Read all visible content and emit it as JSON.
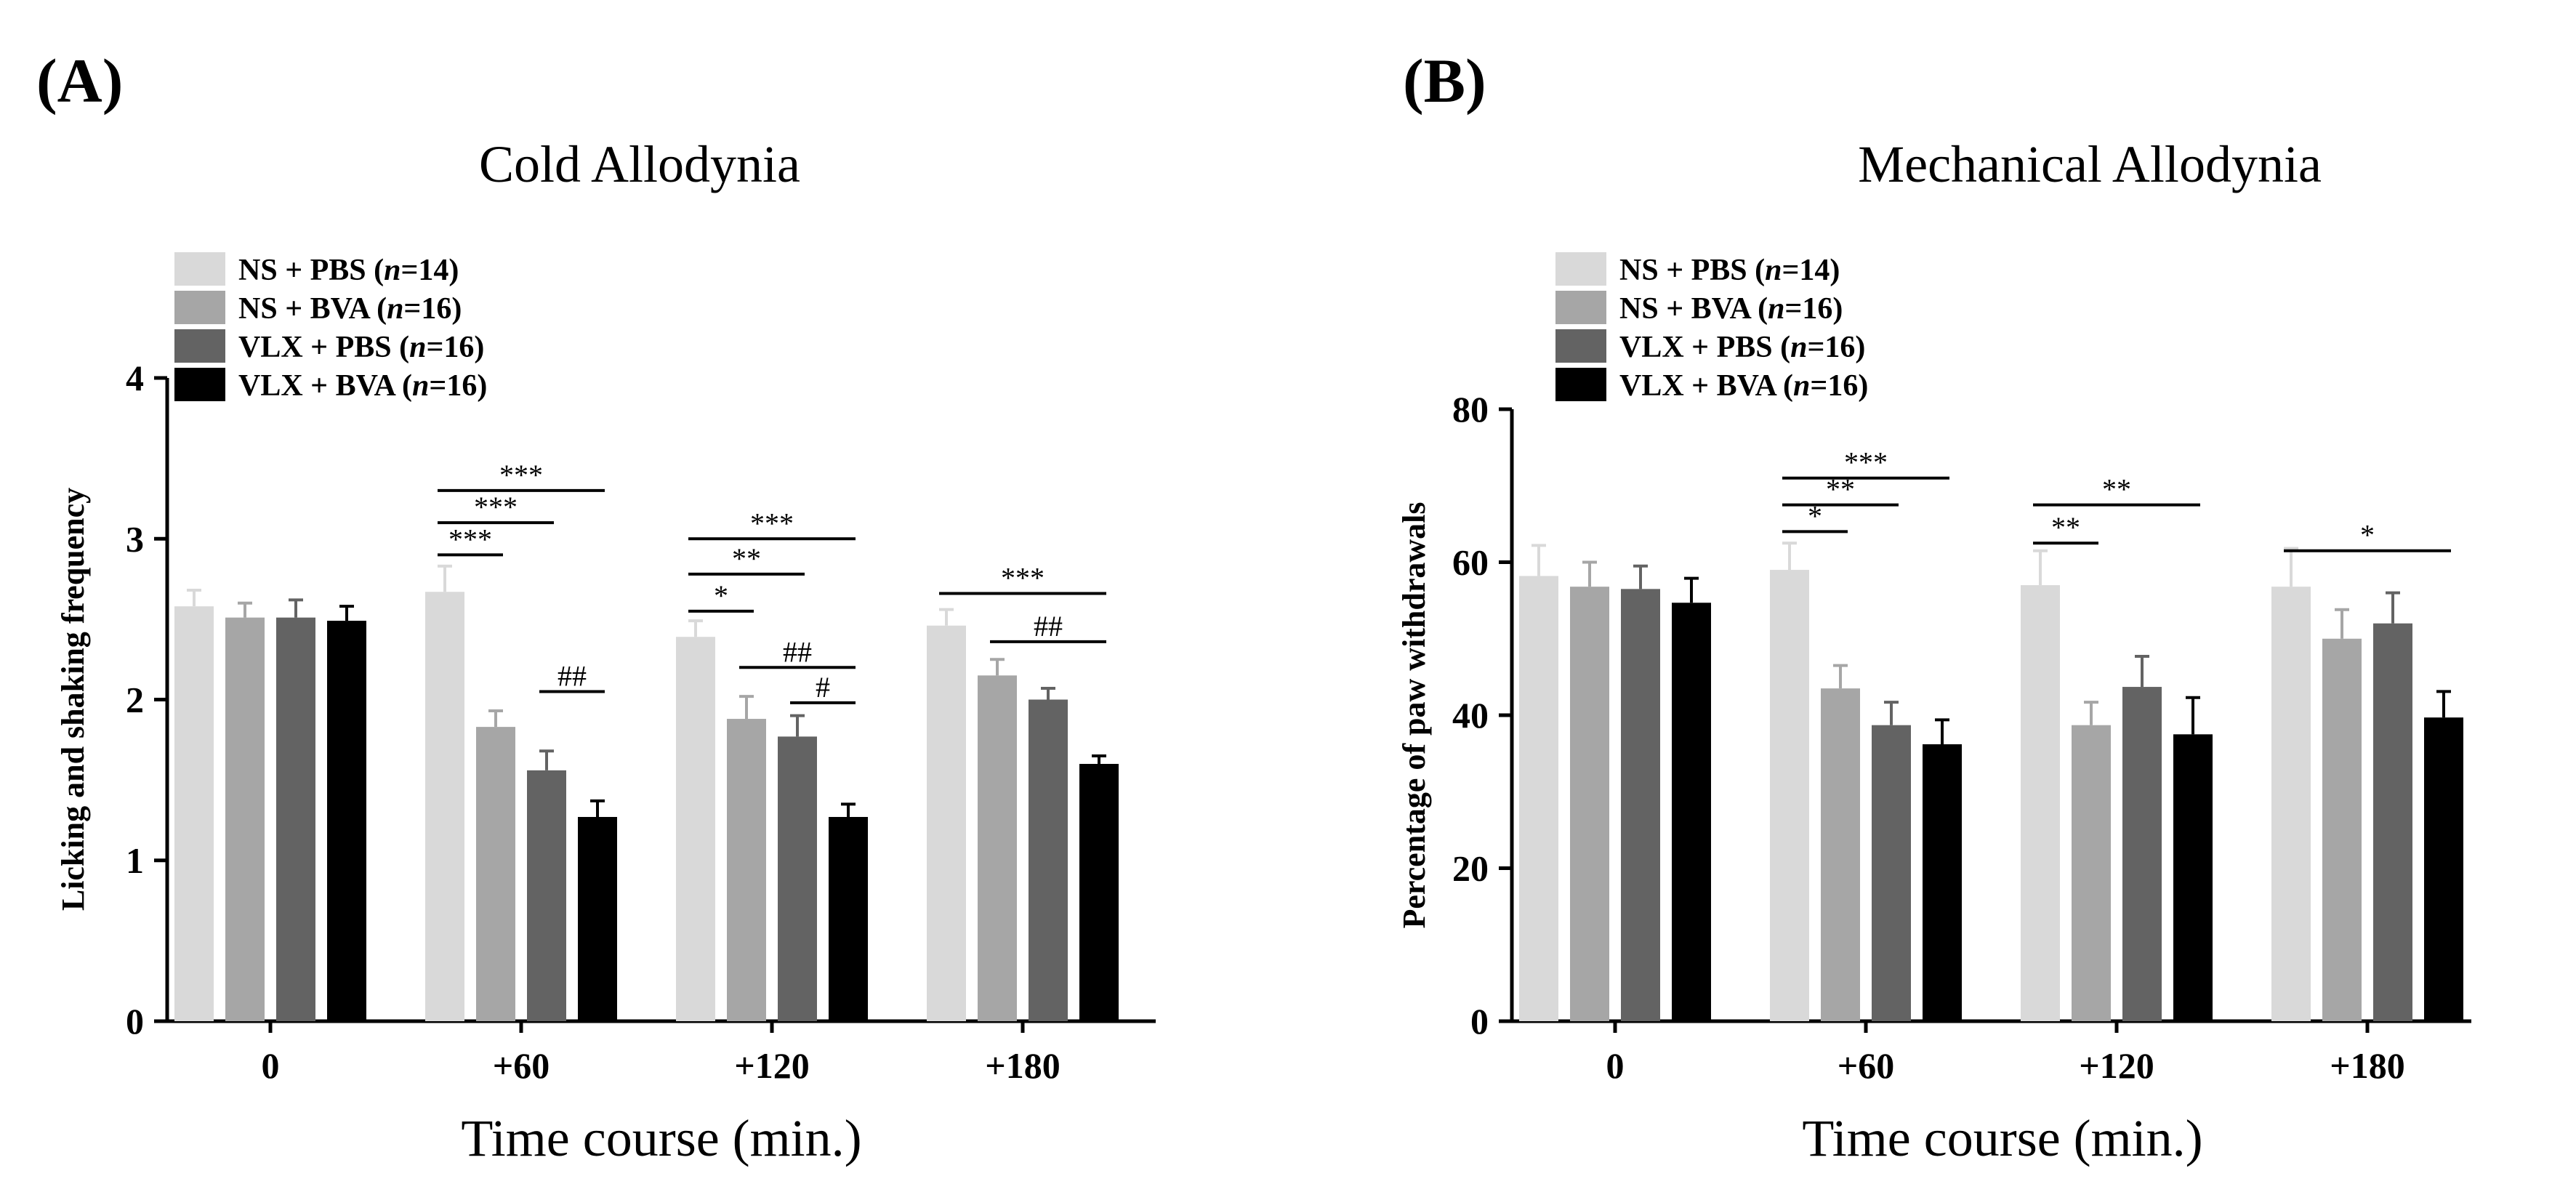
{
  "chart_data": [
    {
      "panel_label": "(A)",
      "type": "bar",
      "title": "Cold Allodynia",
      "xlabel": "Time course (min.)",
      "ylabel": "Licking and shaking frequency",
      "ylim": [
        0,
        4
      ],
      "yticks": [
        0,
        1,
        2,
        3,
        4
      ],
      "categories": [
        "0",
        "+60",
        "+120",
        "+180"
      ],
      "legend": {
        "placement": "top-left"
      },
      "series": [
        {
          "name": "NS + PBS (",
          "n_italic": "n",
          "n_rest": "=14)",
          "color": "#d9d9d9",
          "values": [
            2.58,
            2.67,
            2.39,
            2.46
          ],
          "errors": [
            0.1,
            0.16,
            0.1,
            0.1
          ]
        },
        {
          "name": "NS + BVA (",
          "n_italic": "n",
          "n_rest": "=16)",
          "color": "#a6a6a6",
          "values": [
            2.51,
            1.83,
            1.88,
            2.15
          ],
          "errors": [
            0.09,
            0.1,
            0.14,
            0.1
          ]
        },
        {
          "name": "VLX + PBS (",
          "n_italic": "n",
          "n_rest": "=16)",
          "color": "#636363",
          "values": [
            2.51,
            1.56,
            1.77,
            2.0
          ],
          "errors": [
            0.11,
            0.12,
            0.13,
            0.07
          ]
        },
        {
          "name": "VLX + BVA (",
          "n_italic": "n",
          "n_rest": "=16)",
          "color": "#000000",
          "values": [
            2.49,
            1.27,
            1.27,
            1.6
          ],
          "errors": [
            0.09,
            0.1,
            0.08,
            0.05
          ]
        }
      ],
      "annotations": [
        {
          "cat": 1,
          "from": 0,
          "to": 1,
          "y": 2.9,
          "label": "***"
        },
        {
          "cat": 1,
          "from": 0,
          "to": 2,
          "y": 3.1,
          "label": "***"
        },
        {
          "cat": 1,
          "from": 0,
          "to": 3,
          "y": 3.3,
          "label": "***"
        },
        {
          "cat": 1,
          "from": 2,
          "to": 3,
          "y": 2.05,
          "label": "##"
        },
        {
          "cat": 2,
          "from": 0,
          "to": 1,
          "y": 2.55,
          "label": "*"
        },
        {
          "cat": 2,
          "from": 0,
          "to": 2,
          "y": 2.78,
          "label": "**"
        },
        {
          "cat": 2,
          "from": 0,
          "to": 3,
          "y": 3.0,
          "label": "***"
        },
        {
          "cat": 2,
          "from": 1,
          "to": 3,
          "y": 2.2,
          "label": "##"
        },
        {
          "cat": 2,
          "from": 2,
          "to": 3,
          "y": 1.98,
          "label": "#"
        },
        {
          "cat": 3,
          "from": 0,
          "to": 3,
          "y": 2.66,
          "label": "***"
        },
        {
          "cat": 3,
          "from": 1,
          "to": 3,
          "y": 2.36,
          "label": "##"
        }
      ]
    },
    {
      "panel_label": "(B)",
      "type": "bar",
      "title": "Mechanical Allodynia",
      "xlabel": "Time course (min.)",
      "ylabel": "Percentage of paw withdrawals",
      "ylim": [
        0,
        80
      ],
      "yticks": [
        0,
        20,
        40,
        60,
        80
      ],
      "categories": [
        "0",
        "+60",
        "+120",
        "+180"
      ],
      "legend": {
        "placement": "top-left"
      },
      "series": [
        {
          "name": "NS + PBS (",
          "n_italic": "n",
          "n_rest": "=14)",
          "color": "#d9d9d9",
          "values": [
            58.2,
            59.0,
            57.0,
            56.8
          ],
          "errors": [
            4.0,
            3.5,
            4.5,
            5.0
          ]
        },
        {
          "name": "NS + BVA (",
          "n_italic": "n",
          "n_rest": "=16)",
          "color": "#a6a6a6",
          "values": [
            56.8,
            43.5,
            38.7,
            50.0
          ],
          "errors": [
            3.2,
            3.0,
            3.0,
            3.8
          ]
        },
        {
          "name": "VLX + PBS (",
          "n_italic": "n",
          "n_rest": "=16)",
          "color": "#636363",
          "values": [
            56.5,
            38.7,
            43.7,
            52.0
          ],
          "errors": [
            3.0,
            3.0,
            4.0,
            4.0
          ]
        },
        {
          "name": "VLX + BVA (",
          "n_italic": "n",
          "n_rest": "=16)",
          "color": "#000000",
          "values": [
            54.7,
            36.2,
            37.5,
            39.7
          ],
          "errors": [
            3.2,
            3.2,
            4.8,
            3.4
          ]
        }
      ],
      "annotations": [
        {
          "cat": 1,
          "from": 0,
          "to": 1,
          "y": 64.0,
          "label": "*"
        },
        {
          "cat": 1,
          "from": 0,
          "to": 2,
          "y": 67.5,
          "label": "**"
        },
        {
          "cat": 1,
          "from": 0,
          "to": 3,
          "y": 71.0,
          "label": "***"
        },
        {
          "cat": 2,
          "from": 0,
          "to": 1,
          "y": 62.5,
          "label": "**"
        },
        {
          "cat": 2,
          "from": 0,
          "to": 3,
          "y": 67.5,
          "label": "**"
        },
        {
          "cat": 3,
          "from": 0,
          "to": 3,
          "y": 61.5,
          "label": "*"
        }
      ]
    }
  ]
}
